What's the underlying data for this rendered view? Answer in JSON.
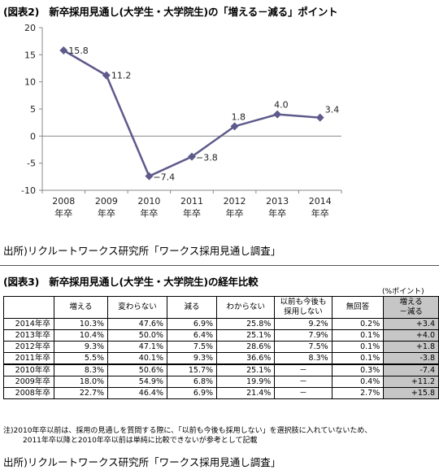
{
  "figure2": {
    "title": "(図表2)　新卒採用見通し(大学生・大学院生)の「増える－減る」ポイント",
    "source": "出所)リクルートワークス研究所「ワークス採用見通し調査」"
  },
  "chart_data": {
    "type": "line",
    "categories": [
      "2008\n年卒",
      "2009\n年卒",
      "2010\n年卒",
      "2011\n年卒",
      "2012\n年卒",
      "2013\n年卒",
      "2014\n年卒"
    ],
    "category_lines": [
      [
        "2008",
        "年卒"
      ],
      [
        "2009",
        "年卒"
      ],
      [
        "2010",
        "年卒"
      ],
      [
        "2011",
        "年卒"
      ],
      [
        "2012",
        "年卒"
      ],
      [
        "2013",
        "年卒"
      ],
      [
        "2014",
        "年卒"
      ]
    ],
    "values": [
      15.8,
      11.2,
      -7.4,
      -3.8,
      1.8,
      4.0,
      3.4
    ],
    "data_labels": [
      "15.8",
      "11.2",
      "−7.4",
      "−3.8",
      "1.8",
      "4.0",
      "3.4"
    ],
    "ylim": [
      -10,
      20
    ],
    "yticks": [
      -10,
      -5,
      0,
      5,
      10,
      15,
      20
    ],
    "ytick_labels": [
      "-10",
      "-5",
      "0",
      "5",
      "10",
      "15",
      "20"
    ],
    "grid": false,
    "line_color": "#5e5a8c",
    "title": "",
    "xlabel": "",
    "ylabel": ""
  },
  "figure3": {
    "title": "(図表3)　新卒採用見通し(大学生・大学院生)の経年比較",
    "unit": "(%ポイント)",
    "headers": [
      "",
      "増える",
      "変わらない",
      "減る",
      "わからない",
      "以前も今後も\n採用しない",
      "無回答",
      "増える\n－減る"
    ],
    "rows": [
      [
        "2014年卒",
        "10.3%",
        "47.6%",
        "6.9%",
        "25.8%",
        "9.2%",
        "0.2%",
        "+3.4"
      ],
      [
        "2013年卒",
        "10.4%",
        "50.0%",
        "6.4%",
        "25.1%",
        "7.9%",
        "0.1%",
        "+4.0"
      ],
      [
        "2012年卒",
        "9.3%",
        "47.1%",
        "7.5%",
        "28.6%",
        "7.5%",
        "0.1%",
        "+1.8"
      ],
      [
        "2011年卒",
        "5.5%",
        "40.1%",
        "9.3%",
        "36.6%",
        "8.3%",
        "0.1%",
        "-3.8"
      ],
      [
        "2010年卒",
        "8.3%",
        "50.6%",
        "15.7%",
        "25.1%",
        "－",
        "0.3%",
        "-7.4"
      ],
      [
        "2009年卒",
        "18.0%",
        "54.9%",
        "6.8%",
        "19.9%",
        "－",
        "0.4%",
        "+11.2"
      ],
      [
        "2008年卒",
        "22.7%",
        "46.4%",
        "6.9%",
        "21.4%",
        "－",
        "2.7%",
        "+15.8"
      ]
    ],
    "notes": [
      "注)2010年卒以前は、採用の見通しを質問する際に、「以前も今後も採用しない」を選択肢に入れていないため、",
      "2011年卒以降と2010年卒以前は単純に比較できないが参考として記載"
    ],
    "source": "出所)リクルートワークス研究所「ワークス採用見通し調査」"
  }
}
